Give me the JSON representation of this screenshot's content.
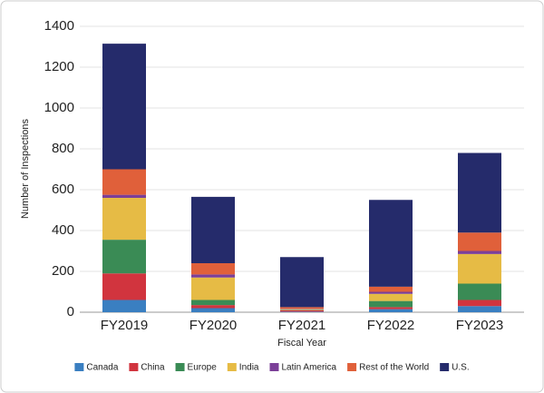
{
  "chart_data": {
    "type": "stacked_bar",
    "y_label": "Number of Inspections",
    "x_label": "Fiscal Year",
    "categories": [
      "FY2019",
      "FY2020",
      "FY2021",
      "FY2022",
      "FY2023"
    ],
    "series": [
      {
        "name": "Canada",
        "color": "#3a7fc1",
        "values": [
          60,
          20,
          3,
          15,
          30
        ]
      },
      {
        "name": "China",
        "color": "#d1343e",
        "values": [
          130,
          15,
          7,
          10,
          30
        ]
      },
      {
        "name": "Europe",
        "color": "#3a8b55",
        "values": [
          165,
          25,
          2,
          30,
          80
        ]
      },
      {
        "name": "India",
        "color": "#e6bb45",
        "values": [
          205,
          110,
          3,
          35,
          145
        ]
      },
      {
        "name": "Latin America",
        "color": "#7b3f98",
        "values": [
          15,
          15,
          2,
          10,
          15
        ]
      },
      {
        "name": "Rest of the World",
        "color": "#e0603a",
        "values": [
          125,
          55,
          8,
          25,
          90
        ]
      },
      {
        "name": "U.S.",
        "color": "#252b6b",
        "values": [
          615,
          325,
          245,
          425,
          390
        ]
      }
    ],
    "ylim": [
      0,
      1400
    ],
    "yticks": [
      0,
      200,
      400,
      600,
      800,
      1000,
      1200,
      1400
    ],
    "grid": true,
    "legend": "bottom"
  }
}
